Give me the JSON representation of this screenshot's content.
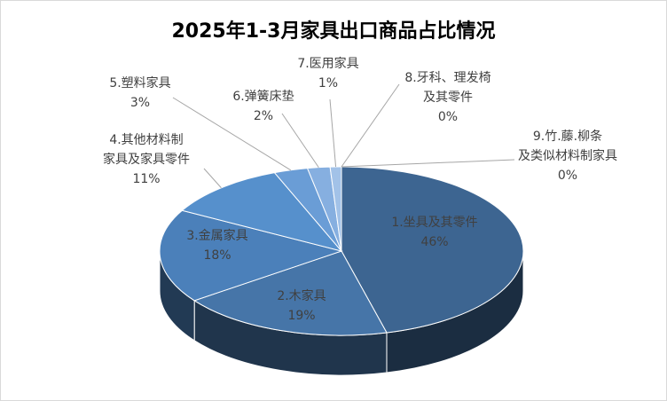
{
  "chart_data": {
    "type": "pie3d",
    "title": "2025年1-3月家具出口商品占比情况",
    "categories": [
      "1.坐具及其零件",
      "2.木家具",
      "3.金属家具",
      "4.其他材料制家具及家具零件",
      "5.塑料家具",
      "6.弹簧床垫",
      "7.医用家具",
      "8.牙科、理发椅及其零件",
      "9.竹.藤.柳条及类似材料制家具"
    ],
    "values": [
      46,
      19,
      18,
      11,
      3,
      2,
      1,
      0,
      0
    ],
    "value_labels": [
      "46%",
      "19%",
      "18%",
      "11%",
      "3%",
      "2%",
      "1%",
      "0%",
      "0%"
    ],
    "colors": [
      "#3d6591",
      "#4675a8",
      "#4b80ba",
      "#5690cc",
      "#6a9dd6",
      "#86afe0",
      "#a2c2e8",
      "#bcd3ee",
      "#d3e2f4"
    ]
  }
}
